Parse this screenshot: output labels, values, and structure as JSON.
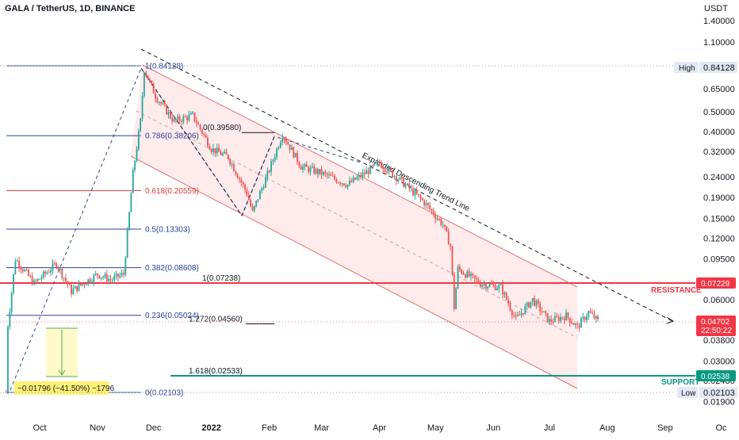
{
  "title": "GALA / TetherUS, 1D, BINANCE",
  "currency": "USDT",
  "colors": {
    "up": "#26a69a",
    "down": "#ef5350",
    "fib_blue": "#2a3f9f",
    "fib_red": "#e53935",
    "resistance": "#f23645",
    "support": "#089981",
    "channel_fill": "#fde4e4",
    "price_badge": "#f23645"
  },
  "chart_data": {
    "type": "candlestick",
    "scale": "log",
    "ylim": [
      0.017,
      1.8
    ],
    "x_range": [
      "2021-09-01",
      "2022-10-31"
    ],
    "x_ticks": [
      {
        "date": "2021-10-01",
        "label": "Oct"
      },
      {
        "date": "2021-11-01",
        "label": "Nov"
      },
      {
        "date": "2021-12-01",
        "label": "Dec"
      },
      {
        "date": "2022-01-01",
        "label": "2022"
      },
      {
        "date": "2022-02-01",
        "label": "Feb"
      },
      {
        "date": "2022-03-01",
        "label": "Mar"
      },
      {
        "date": "2022-04-01",
        "label": "Apr"
      },
      {
        "date": "2022-05-01",
        "label": "May"
      },
      {
        "date": "2022-06-01",
        "label": "Jun"
      },
      {
        "date": "2022-07-01",
        "label": "Jul"
      },
      {
        "date": "2022-08-01",
        "label": "Aug"
      },
      {
        "date": "2022-09-01",
        "label": "Sep"
      },
      {
        "date": "2022-10-01",
        "label": "Oc"
      }
    ],
    "y_ticks": [
      "1.40000",
      "1.10000",
      "0.84128",
      "0.65000",
      "0.50000",
      "0.40000",
      "0.32000",
      "0.24000",
      "0.19000",
      "0.15000",
      "0.12000",
      "0.09500",
      "0.07229",
      "0.06000",
      "0.04702",
      "0.03800",
      "0.03000",
      "0.02538",
      "0.02400",
      "0.02103",
      "0.01900"
    ],
    "price_path": [
      [
        "2021-09-13",
        0.0211
      ],
      [
        "2021-09-14",
        0.045
      ],
      [
        "2021-09-18",
        0.095
      ],
      [
        "2021-09-28",
        0.072
      ],
      [
        "2021-10-10",
        0.09
      ],
      [
        "2021-10-18",
        0.066
      ],
      [
        "2021-11-01",
        0.08
      ],
      [
        "2021-11-08",
        0.075
      ],
      [
        "2021-11-15",
        0.08
      ],
      [
        "2021-11-20",
        0.25
      ],
      [
        "2021-11-24",
        0.45
      ],
      [
        "2021-11-26",
        0.81
      ],
      [
        "2021-12-02",
        0.6
      ],
      [
        "2021-12-12",
        0.45
      ],
      [
        "2021-12-22",
        0.48
      ],
      [
        "2022-01-01",
        0.33
      ],
      [
        "2022-01-10",
        0.3
      ],
      [
        "2022-01-20",
        0.2
      ],
      [
        "2022-01-23",
        0.16
      ],
      [
        "2022-01-26",
        0.19
      ],
      [
        "2022-02-01",
        0.26
      ],
      [
        "2022-02-08",
        0.39
      ],
      [
        "2022-02-18",
        0.27
      ],
      [
        "2022-03-01",
        0.25
      ],
      [
        "2022-03-15",
        0.22
      ],
      [
        "2022-04-01",
        0.28
      ],
      [
        "2022-04-10",
        0.24
      ],
      [
        "2022-04-25",
        0.18
      ],
      [
        "2022-05-05",
        0.14
      ],
      [
        "2022-05-09",
        0.11
      ],
      [
        "2022-05-11",
        0.055
      ],
      [
        "2022-05-13",
        0.085
      ],
      [
        "2022-05-25",
        0.072
      ],
      [
        "2022-06-05",
        0.069
      ],
      [
        "2022-06-13",
        0.048
      ],
      [
        "2022-06-22",
        0.06
      ],
      [
        "2022-07-01",
        0.047
      ],
      [
        "2022-07-10",
        0.05
      ],
      [
        "2022-07-16",
        0.044
      ],
      [
        "2022-07-22",
        0.052
      ],
      [
        "2022-07-27",
        0.047
      ]
    ],
    "last_price": "0.04702",
    "countdown": "22:50:22",
    "high_label": "High",
    "high_value": "0.84128",
    "low_label": "Low",
    "low_value": "0.02103"
  },
  "fib_retracement": {
    "levels": [
      {
        "label": "1(0.84128)",
        "price": 0.84128,
        "color": "blue"
      },
      {
        "label": "0.786(0.38206)",
        "price": 0.38206,
        "color": "blue"
      },
      {
        "label": "0.618(0.20559)",
        "price": 0.20559,
        "color": "red"
      },
      {
        "label": "0.5(0.13303)",
        "price": 0.13303,
        "color": "blue"
      },
      {
        "label": "0.382(0.08608)",
        "price": 0.08608,
        "color": "blue"
      },
      {
        "label": "0.236(0.05024)",
        "price": 0.05024,
        "color": "blue"
      },
      {
        "label": "0(0.02103)",
        "price": 0.02103,
        "color": "blue"
      }
    ]
  },
  "fib_extension": {
    "levels": [
      {
        "label": "0(0.39580)",
        "price": 0.3958
      },
      {
        "label": "1(0.07238)",
        "price": 0.07238
      },
      {
        "label": "1.272(0.04560)",
        "price": 0.0456
      },
      {
        "label": "1.618(0.02533)",
        "price": 0.02533
      }
    ]
  },
  "annotations": {
    "resistance_label": "RESISTANCE",
    "resistance_value": "0.07229",
    "support_label": "SUPPORT",
    "support_value": "0.02538",
    "trendline_label": "Expanded Descending Trend Line",
    "measure_label": "−0.01796 (−41.50%) −1796"
  }
}
